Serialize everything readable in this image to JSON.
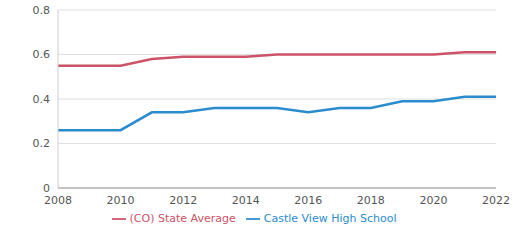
{
  "chart_data": {
    "type": "line",
    "x": [
      2008,
      2009,
      2010,
      2011,
      2012,
      2013,
      2014,
      2015,
      2016,
      2017,
      2018,
      2019,
      2020,
      2021,
      2022
    ],
    "series": [
      {
        "name": "Castle View High School",
        "color": "#2a8ccd",
        "values": [
          0.26,
          0.26,
          0.26,
          0.34,
          0.34,
          0.36,
          0.36,
          0.36,
          0.34,
          0.36,
          0.36,
          0.39,
          0.39,
          0.41,
          0.41
        ]
      },
      {
        "name": "(CO) State Average",
        "color": "#cc5268",
        "values": [
          0.55,
          0.55,
          0.55,
          0.58,
          0.59,
          0.59,
          0.59,
          0.6,
          0.6,
          0.6,
          0.6,
          0.6,
          0.6,
          0.61,
          0.61
        ]
      }
    ],
    "xlim": [
      2008,
      2022
    ],
    "xticks": [
      2008,
      2010,
      2012,
      2014,
      2016,
      2018,
      2020,
      2022
    ],
    "ylim": [
      0,
      0.8
    ],
    "yticks": [
      0,
      0.2,
      0.4,
      0.6,
      0.8
    ],
    "grid": true,
    "legend": "bottom"
  }
}
